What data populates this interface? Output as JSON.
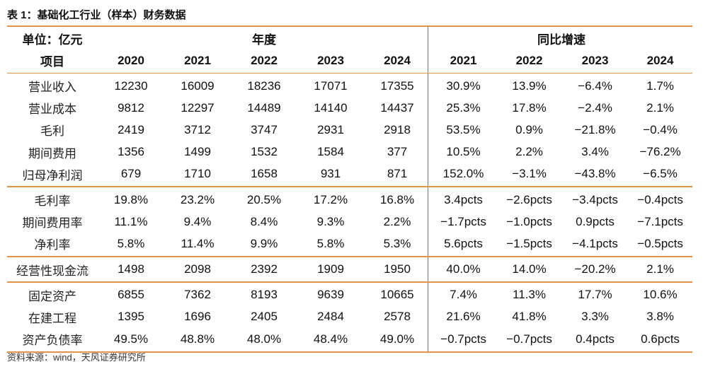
{
  "title": "表 1：基础化工行业（样本）财务数据",
  "header": {
    "unit": "单位：亿元",
    "item": "项目",
    "group_year": "年度",
    "group_growth": "同比增速",
    "years": [
      "2020",
      "2021",
      "2022",
      "2023",
      "2024"
    ],
    "growth_years": [
      "2021",
      "2022",
      "2023",
      "2024"
    ]
  },
  "groups": [
    {
      "rows": [
        {
          "label": "营业收入",
          "values": [
            "12230",
            "16009",
            "18236",
            "17071",
            "17355"
          ],
          "growth": [
            "30.9%",
            "13.9%",
            "−6.4%",
            "1.7%"
          ]
        },
        {
          "label": "营业成本",
          "values": [
            "9812",
            "12297",
            "14489",
            "14140",
            "14437"
          ],
          "growth": [
            "25.3%",
            "17.8%",
            "−2.4%",
            "2.1%"
          ]
        },
        {
          "label": "毛利",
          "values": [
            "2419",
            "3712",
            "3747",
            "2931",
            "2918"
          ],
          "growth": [
            "53.5%",
            "0.9%",
            "−21.8%",
            "−0.4%"
          ]
        },
        {
          "label": "期间费用",
          "values": [
            "1356",
            "1499",
            "1532",
            "1584",
            "377"
          ],
          "growth": [
            "10.5%",
            "2.2%",
            "3.4%",
            "−76.2%"
          ]
        },
        {
          "label": "归母净利润",
          "values": [
            "679",
            "1710",
            "1658",
            "931",
            "871"
          ],
          "growth": [
            "152.0%",
            "−3.1%",
            "−43.8%",
            "−6.5%"
          ]
        }
      ]
    },
    {
      "rows": [
        {
          "label": "毛利率",
          "values": [
            "19.8%",
            "23.2%",
            "20.5%",
            "17.2%",
            "16.8%"
          ],
          "growth": [
            "3.4pcts",
            "−2.6pcts",
            "−3.4pcts",
            "−0.4pcts"
          ]
        },
        {
          "label": "期间费用率",
          "values": [
            "11.1%",
            "9.4%",
            "8.4%",
            "9.3%",
            "2.2%"
          ],
          "growth": [
            "−1.7pcts",
            "−1.0pcts",
            "0.9pcts",
            "−7.1pcts"
          ]
        },
        {
          "label": "净利率",
          "values": [
            "5.8%",
            "11.4%",
            "9.9%",
            "5.8%",
            "5.3%"
          ],
          "growth": [
            "5.6pcts",
            "−1.5pcts",
            "−4.1pcts",
            "−0.5pcts"
          ]
        }
      ]
    },
    {
      "rows": [
        {
          "label": "经营性现金流",
          "values": [
            "1498",
            "2098",
            "2392",
            "1909",
            "1950"
          ],
          "growth": [
            "40.0%",
            "14.0%",
            "−20.2%",
            "2.1%"
          ]
        }
      ]
    },
    {
      "rows": [
        {
          "label": "固定资产",
          "values": [
            "6855",
            "7362",
            "8193",
            "9639",
            "10665"
          ],
          "growth": [
            "7.4%",
            "11.3%",
            "17.7%",
            "10.6%"
          ]
        },
        {
          "label": "在建工程",
          "values": [
            "1395",
            "1696",
            "2405",
            "2484",
            "2578"
          ],
          "growth": [
            "21.6%",
            "41.8%",
            "3.3%",
            "3.8%"
          ]
        },
        {
          "label": "资产负债率",
          "values": [
            "49.5%",
            "48.8%",
            "48.0%",
            "48.4%",
            "49.0%"
          ],
          "growth": [
            "−0.7pcts",
            "−0.7pcts",
            "0.4pcts",
            "0.6pcts"
          ]
        }
      ]
    }
  ],
  "source": "资料来源：wind，天风证券研究所",
  "colors": {
    "rule": "#E6934A",
    "divider": "#7a7a7a",
    "text": "#111111"
  }
}
